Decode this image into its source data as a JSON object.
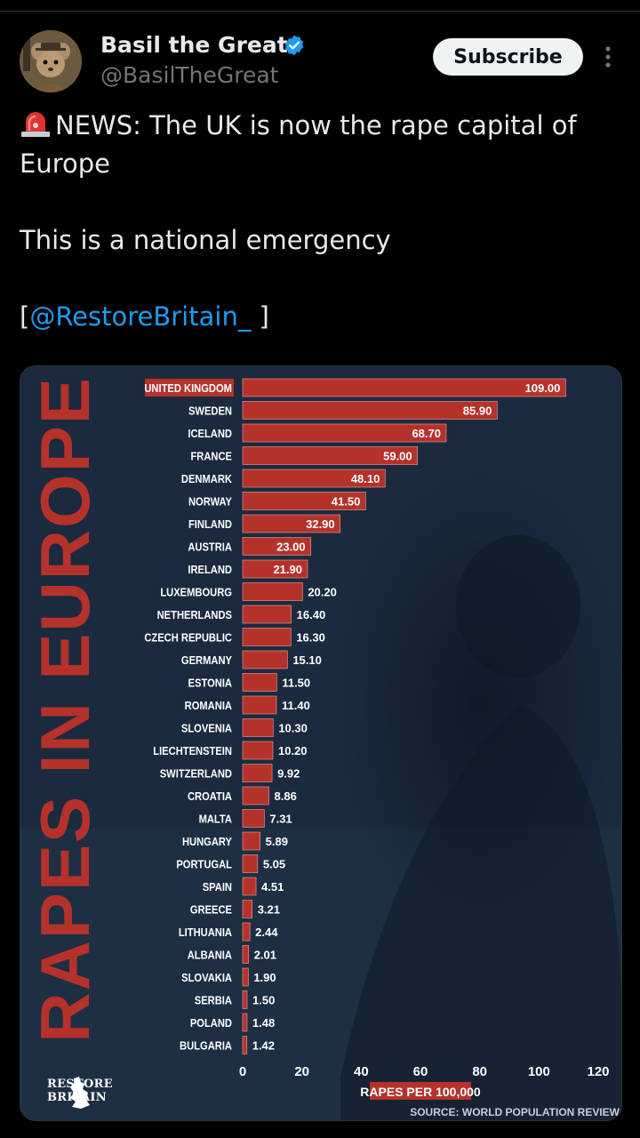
{
  "post": {
    "author_name": "Basil the Great",
    "author_handle": "@BasilTheGreat",
    "subscribe_label": "Subscribe",
    "text_line1": "NEWS: The UK is now the rape capital of Europe",
    "text_line2": "This is a national emergency",
    "mention_open": "[",
    "mention": "@RestoreBritain_",
    "mention_close": " ]",
    "icons": [
      "siren-icon",
      "verified-badge-icon",
      "more-options-icon"
    ]
  },
  "colors": {
    "bar": "#b5322b",
    "highlight": "#b5322b",
    "background": "#1b2a3e",
    "title": "#b5322b"
  },
  "image": {
    "logo_line1": "RESTORE",
    "logo_line2": "BRITAIN"
  },
  "chart_data": {
    "type": "bar",
    "orientation": "horizontal",
    "title": "RAPES IN EUROPE",
    "xlabel": "RAPES PER 100,000",
    "source": "SOURCE: WORLD POPULATION REVIEW",
    "xlim": [
      0,
      120
    ],
    "xticks": [
      "0",
      "20",
      "40",
      "60",
      "80",
      "100",
      "120"
    ],
    "highlighted_category": "UNITED KINGDOM",
    "categories": [
      "UNITED KINGDOM",
      "SWEDEN",
      "ICELAND",
      "FRANCE",
      "DENMARK",
      "NORWAY",
      "FINLAND",
      "AUSTRIA",
      "IRELAND",
      "LUXEMBOURG",
      "NETHERLANDS",
      "CZECH REPUBLIC",
      "GERMANY",
      "ESTONIA",
      "ROMANIA",
      "SLOVENIA",
      "LIECHTENSTEIN",
      "SWITZERLAND",
      "CROATIA",
      "MALTA",
      "HUNGARY",
      "PORTUGAL",
      "SPAIN",
      "GREECE",
      "LITHUANIA",
      "ALBANIA",
      "SLOVAKIA",
      "SERBIA",
      "POLAND",
      "BULGARIA"
    ],
    "values": [
      109.0,
      85.9,
      68.7,
      59.0,
      48.1,
      41.5,
      32.9,
      23.0,
      21.9,
      20.2,
      16.4,
      16.3,
      15.1,
      11.5,
      11.4,
      10.3,
      10.2,
      9.92,
      8.86,
      7.31,
      5.89,
      5.05,
      4.51,
      3.21,
      2.44,
      2.01,
      1.9,
      1.5,
      1.48,
      1.42
    ],
    "value_labels": [
      "109.00",
      "85.90",
      "68.70",
      "59.00",
      "48.10",
      "41.50",
      "32.90",
      "23.00",
      "21.90",
      "20.20",
      "16.40",
      "16.30",
      "15.10",
      "11.50",
      "11.40",
      "10.30",
      "10.20",
      "9.92",
      "8.86",
      "7.31",
      "5.89",
      "5.05",
      "4.51",
      "3.21",
      "2.44",
      "2.01",
      "1.90",
      "1.50",
      "1.48",
      "1.42"
    ]
  }
}
